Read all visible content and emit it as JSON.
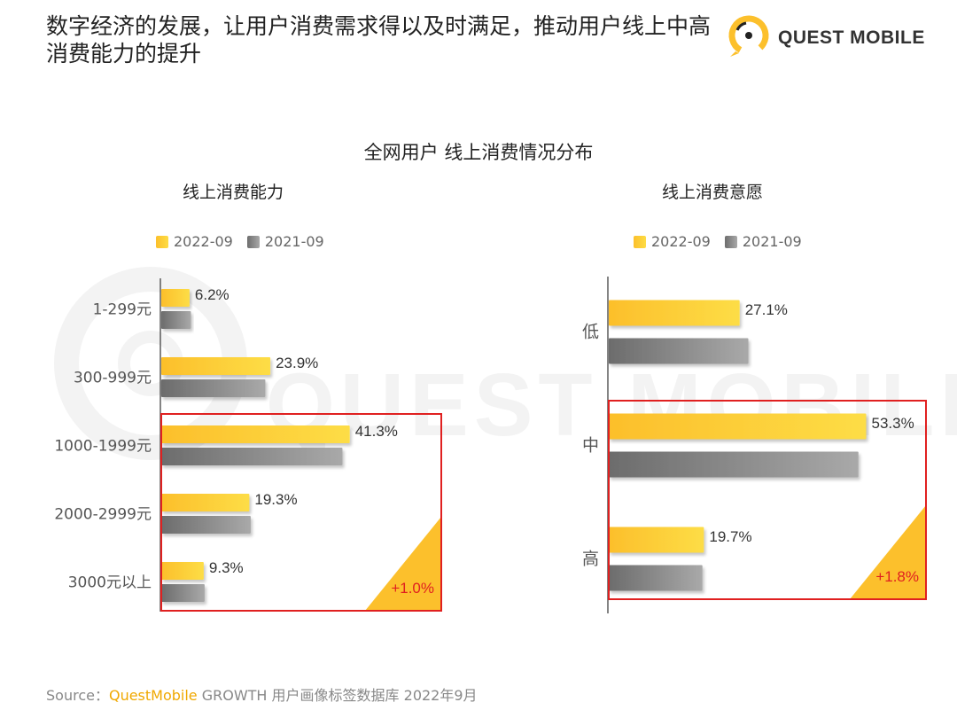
{
  "headline": "数字经济的发展，让用户消费需求得以及时满足，推动用户线上中高消费能力的提升",
  "logo": {
    "text": "QUEST MOBILE",
    "icon": "questmobile-logo-icon"
  },
  "watermark": "QUEST MOBILE",
  "main_title": "全网用户 线上消费情况分布",
  "source": {
    "prefix": "Source：",
    "brand": "QuestMobile",
    "rest": " GROWTH 用户画像标签数据库 2022年9月"
  },
  "colors": {
    "series_2022": "#fcc02c",
    "series_2021": "#808080",
    "highlight": "#e02020",
    "delta_triangle": "#fcc02c"
  },
  "chart_data": [
    {
      "type": "bar",
      "orientation": "horizontal",
      "title": "线上消费能力",
      "categories": [
        "1-299元",
        "300-999元",
        "1000-1999元",
        "2000-2999元",
        "3000元以上"
      ],
      "series": [
        {
          "name": "2022-09",
          "values": [
            6.2,
            23.9,
            41.3,
            19.3,
            9.3
          ],
          "labels": [
            "6.2%",
            "23.9%",
            "41.3%",
            "19.3%",
            "9.3%"
          ]
        },
        {
          "name": "2021-09",
          "values": [
            6.5,
            22.8,
            39.7,
            19.6,
            9.5
          ]
        }
      ],
      "highlight": {
        "categories": [
          "1000-1999元",
          "2000-2999元",
          "3000元以上"
        ],
        "delta": "+1.0%"
      },
      "legend": "top",
      "grid": false
    },
    {
      "type": "bar",
      "orientation": "horizontal",
      "title": "线上消费意愿",
      "categories": [
        "低",
        "中",
        "高"
      ],
      "series": [
        {
          "name": "2022-09",
          "values": [
            27.1,
            53.3,
            19.7
          ],
          "labels": [
            "27.1%",
            "53.3%",
            "19.7%"
          ]
        },
        {
          "name": "2021-09",
          "values": [
            28.9,
            51.7,
            19.4
          ]
        }
      ],
      "highlight": {
        "categories": [
          "中",
          "高"
        ],
        "delta": "+1.8%"
      },
      "legend": "top",
      "grid": false
    }
  ]
}
